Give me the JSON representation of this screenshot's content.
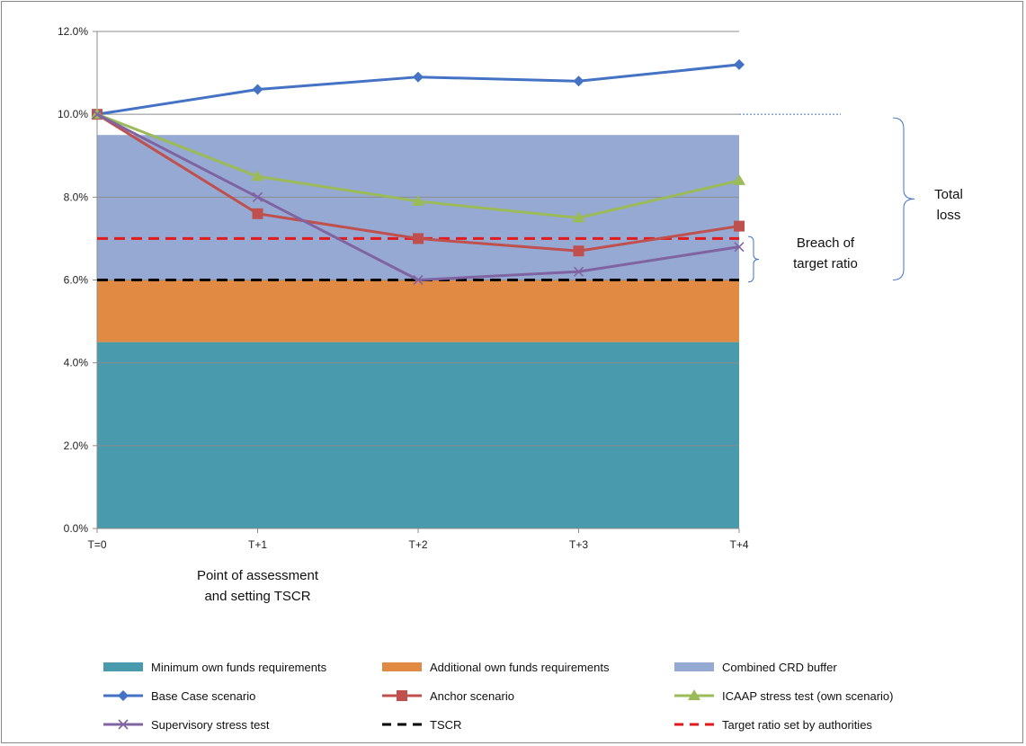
{
  "chart_data": {
    "type": "line",
    "title": "",
    "xlabel": "",
    "ylabel": "",
    "categories": [
      "T=0",
      "T+1",
      "T+2",
      "T+3",
      "T+4"
    ],
    "ylim": [
      0,
      12
    ],
    "y_ticks": [
      "0.0%",
      "2.0%",
      "4.0%",
      "6.0%",
      "8.0%",
      "10.0%",
      "12.0%"
    ],
    "y_tick_values": [
      0,
      2,
      4,
      6,
      8,
      10,
      12
    ],
    "grid": "horizontal major gridlines",
    "legend_position": "bottom",
    "bands": [
      {
        "name": "Minimum own funds requirements",
        "from": 0,
        "to": 4.5,
        "color": "#4a9aad"
      },
      {
        "name": "Additional own funds requirements",
        "from": 4.5,
        "to": 6.0,
        "color": "#e08a43"
      },
      {
        "name": "Combined CRD buffer",
        "from": 6.0,
        "to": 9.5,
        "color": "#95a9d2"
      }
    ],
    "series": [
      {
        "name": "Base Case scenario",
        "values": [
          10.0,
          10.6,
          10.9,
          10.8,
          11.2
        ],
        "color": "#4472c4",
        "marker": "diamond"
      },
      {
        "name": "Anchor scenario",
        "values": [
          10.0,
          7.6,
          7.0,
          6.7,
          7.3
        ],
        "color": "#c0504d",
        "marker": "square"
      },
      {
        "name": "ICAAP stress test (own scenario)",
        "values": [
          10.0,
          8.5,
          7.9,
          7.5,
          8.4
        ],
        "color": "#9bbb59",
        "marker": "triangle"
      },
      {
        "name": "Supervisory stress test",
        "values": [
          10.0,
          8.0,
          6.0,
          6.2,
          6.8
        ],
        "color": "#8064a2",
        "marker": "x"
      }
    ],
    "reference_lines": [
      {
        "name": "TSCR",
        "value": 6.0,
        "color": "#000000",
        "style": "dashed"
      },
      {
        "name": "Target ratio set by authorities",
        "value": 7.0,
        "color": "#e31a1c",
        "style": "dashed"
      }
    ],
    "annotations": {
      "assessment": [
        "Point of  assessment",
        "and setting TSCR"
      ],
      "breach": [
        "Breach of",
        "target ratio"
      ],
      "total_loss": [
        "Total",
        "loss"
      ]
    }
  }
}
